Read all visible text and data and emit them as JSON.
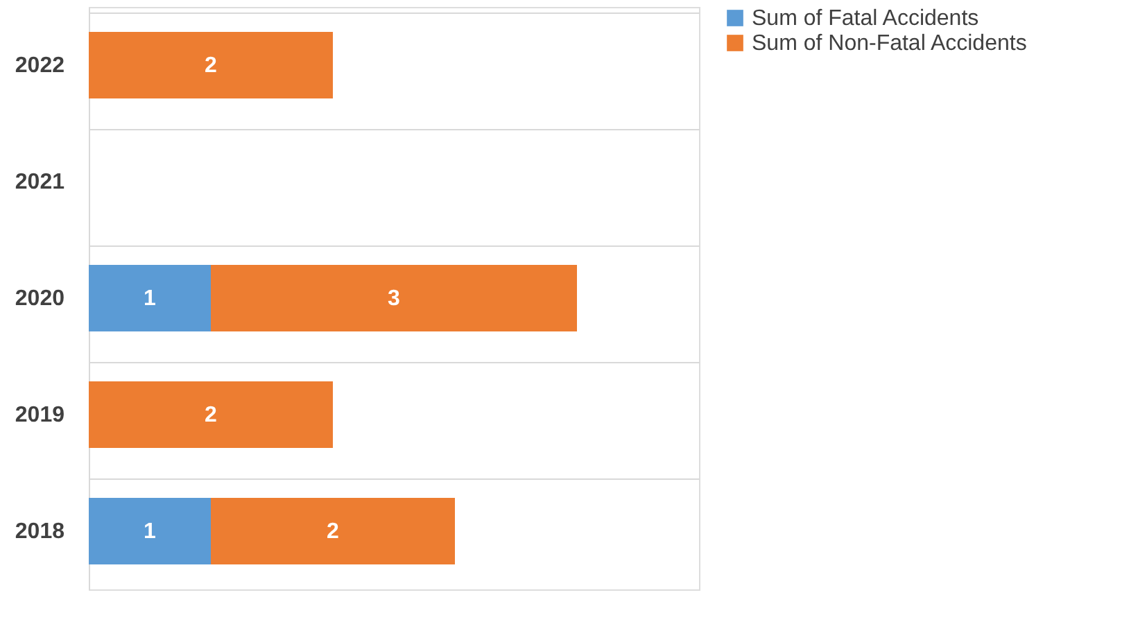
{
  "chart_data": {
    "type": "bar",
    "orientation": "horizontal",
    "stacked": true,
    "categories": [
      "2022",
      "2021",
      "2020",
      "2019",
      "2018"
    ],
    "series": [
      {
        "name": "Sum of Fatal Accidents",
        "color": "#5b9bd5",
        "values": [
          0,
          0,
          1,
          0,
          1
        ],
        "value_labels": [
          null,
          null,
          "1",
          null,
          "1"
        ]
      },
      {
        "name": "Sum of Non-Fatal Accidents",
        "color": "#ed7d31",
        "values": [
          2,
          0,
          3,
          2,
          2
        ],
        "value_labels": [
          "2",
          null,
          "3",
          "2",
          "2"
        ]
      }
    ],
    "xlim": [
      0,
      5
    ],
    "tick_labels": "y",
    "grid": "y",
    "legend": "right"
  }
}
